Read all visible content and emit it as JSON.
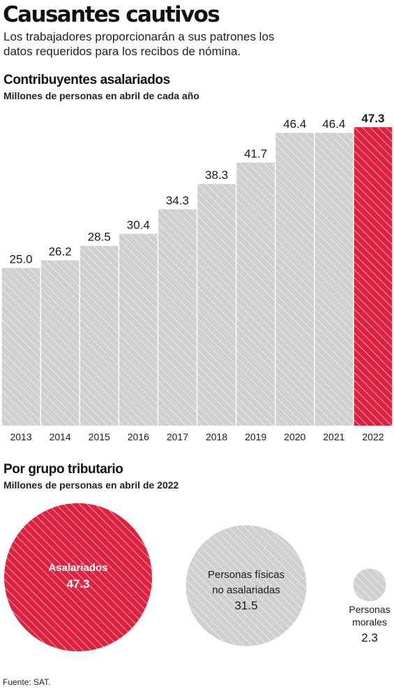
{
  "header": {
    "title": "Causantes cautivos",
    "subtitle": "Los trabajadores proporcionarán a sus patrones los datos requeridos para los recibos de nómina."
  },
  "section1": {
    "title": "Contribuyentes asalariados",
    "subtitle": "Millones de personas en abril de cada año"
  },
  "section2": {
    "title": "Por grupo tributario",
    "subtitle": "Millones de personas en abril de 2022"
  },
  "source": "Fuente: SAT.",
  "colors": {
    "bar_fill": "#cfcfcf",
    "highlight": "#e0203f",
    "text": "#1a1a1a",
    "hatch_light": "#ffffff"
  },
  "chart_data": [
    {
      "type": "bar",
      "title": "Contribuyentes asalariados",
      "subtitle": "Millones de personas en abril de cada año",
      "categories": [
        "2013",
        "2014",
        "2015",
        "2016",
        "2017",
        "2018",
        "2019",
        "2020",
        "2021",
        "2022"
      ],
      "values": [
        25.0,
        26.2,
        28.5,
        30.4,
        34.3,
        38.3,
        41.7,
        46.4,
        46.4,
        47.3
      ],
      "value_labels": [
        "25.0",
        "26.2",
        "28.5",
        "30.4",
        "34.3",
        "38.3",
        "41.7",
        "46.4",
        "46.4",
        "47.3"
      ],
      "highlight_index": 9,
      "ylim": [
        0,
        47.3
      ],
      "grid": false,
      "xlabel": "",
      "ylabel": ""
    },
    {
      "type": "bubble",
      "title": "Por grupo tributario",
      "subtitle": "Millones de personas en abril de 2022",
      "items": [
        {
          "label_lines": [
            "Asalariados"
          ],
          "value": 47.3,
          "value_label": "47.3",
          "highlight": true
        },
        {
          "label_lines": [
            "Personas físicas",
            "no asalariadas"
          ],
          "value": 31.5,
          "value_label": "31.5",
          "highlight": false
        },
        {
          "label_lines": [
            "Personas",
            "morales"
          ],
          "value": 2.3,
          "value_label": "2.3",
          "highlight": false
        }
      ]
    }
  ]
}
